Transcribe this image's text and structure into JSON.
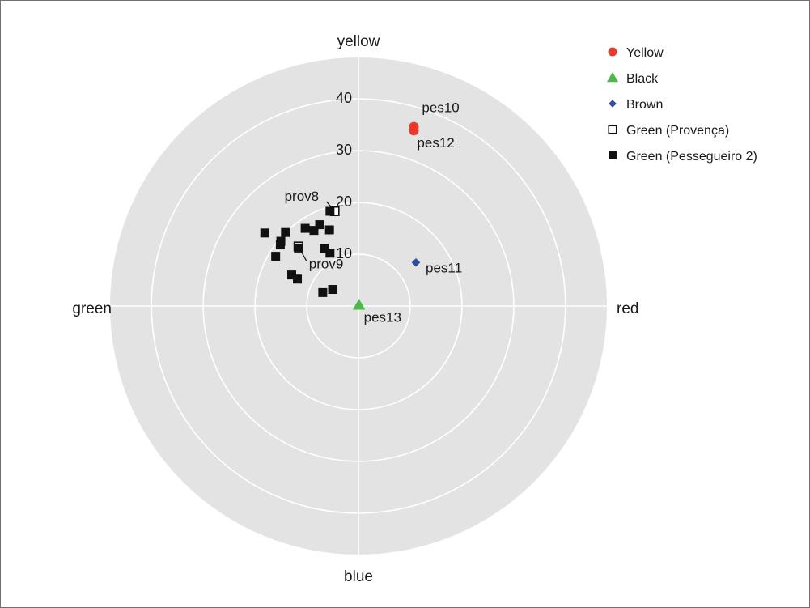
{
  "chart_data": {
    "type": "scatter",
    "subtype": "polar-color-wheel",
    "title": "",
    "directions": {
      "top": "yellow",
      "right": "red",
      "bottom": "blue",
      "left": "green"
    },
    "radial_ticks": [
      10,
      20,
      30,
      40
    ],
    "radial_max": 48,
    "grid": true,
    "legend_position": "top-right",
    "series": [
      {
        "name": "Yellow",
        "marker": "circle",
        "color": "#e8392b",
        "points": [
          {
            "x": 10.7,
            "y": 34.6,
            "label": "pes10"
          },
          {
            "x": 10.7,
            "y": 33.9,
            "label": "pes12"
          }
        ]
      },
      {
        "name": "Black",
        "marker": "triangle",
        "color": "#4cb848",
        "points": [
          {
            "x": 0.1,
            "y": 0.2,
            "label": "pes13"
          }
        ]
      },
      {
        "name": "Brown",
        "marker": "diamond",
        "color": "#2f4ea3",
        "points": [
          {
            "x": 11.1,
            "y": 8.4,
            "label": "pes11"
          }
        ]
      },
      {
        "name": "Green (Provença)",
        "marker": "square-open",
        "color": "#111111",
        "points": [
          {
            "x": -4.6,
            "y": 18.3,
            "label": "prov8"
          },
          {
            "x": -11.6,
            "y": 11.5,
            "label": "prov9"
          }
        ]
      },
      {
        "name": "Green (Pessegueiro 2)",
        "marker": "square",
        "color": "#111111",
        "points": [
          {
            "x": -5.5,
            "y": 18.3,
            "label": ""
          },
          {
            "x": -7.5,
            "y": 15.7,
            "label": ""
          },
          {
            "x": -10.3,
            "y": 15.0,
            "label": ""
          },
          {
            "x": -8.6,
            "y": 14.6,
            "label": ""
          },
          {
            "x": -5.6,
            "y": 14.7,
            "label": ""
          },
          {
            "x": -14.1,
            "y": 14.2,
            "label": ""
          },
          {
            "x": -18.1,
            "y": 14.1,
            "label": ""
          },
          {
            "x": -15.0,
            "y": 12.5,
            "label": ""
          },
          {
            "x": -15.1,
            "y": 11.8,
            "label": ""
          },
          {
            "x": -16.0,
            "y": 9.6,
            "label": ""
          },
          {
            "x": -11.6,
            "y": 11.2,
            "label": ""
          },
          {
            "x": -6.6,
            "y": 11.1,
            "label": ""
          },
          {
            "x": -5.5,
            "y": 10.2,
            "label": ""
          },
          {
            "x": -12.9,
            "y": 6.0,
            "label": ""
          },
          {
            "x": -11.8,
            "y": 5.2,
            "label": ""
          },
          {
            "x": -6.9,
            "y": 2.6,
            "label": ""
          },
          {
            "x": -5.0,
            "y": 3.2,
            "label": ""
          }
        ]
      }
    ]
  },
  "legend": {
    "items": [
      {
        "label": "Yellow",
        "marker": "circle",
        "color": "#e8392b"
      },
      {
        "label": "Black",
        "marker": "triangle",
        "color": "#4cb848"
      },
      {
        "label": "Brown",
        "marker": "diamond",
        "color": "#2f4ea3"
      },
      {
        "label": "Green (Provença)",
        "marker": "square-open",
        "color": "#111111"
      },
      {
        "label": "Green (Pessegueiro 2)",
        "marker": "square",
        "color": "#111111"
      }
    ]
  },
  "colors": {
    "panel_background": "#e3e3e3",
    "gridline": "#ffffff",
    "frame": "#6f6f6f"
  }
}
